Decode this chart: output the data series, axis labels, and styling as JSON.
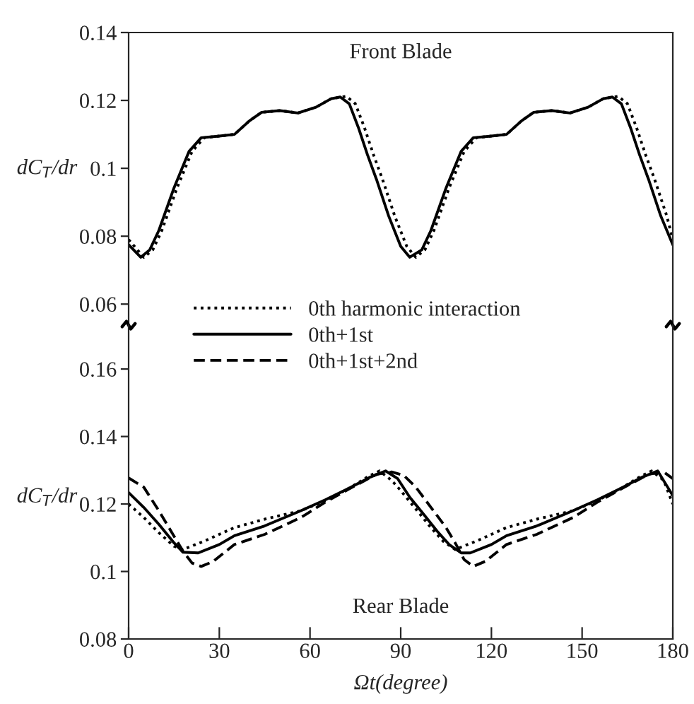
{
  "chart_data": [
    {
      "type": "line",
      "ylabel": "dC$_{T}$/dr",
      "annotations": [
        "Front Blade"
      ],
      "xlim": [
        0,
        180
      ],
      "ylim": [
        0.0538,
        0.14
      ],
      "yticks": [
        0.06,
        0.08,
        0.1,
        0.12,
        0.14
      ],
      "tick_labels": "y",
      "grid": false,
      "legend": false,
      "series": [
        {
          "color": "#000000",
          "line_style": "dotted",
          "x": [
            0,
            5,
            8,
            11,
            16,
            21,
            25,
            30,
            35,
            40,
            44,
            50,
            56,
            62,
            67,
            72,
            75,
            78,
            81,
            84,
            88,
            92,
            95,
            98,
            101,
            106,
            111,
            115,
            120,
            125,
            130,
            134,
            140,
            146,
            152,
            157,
            162,
            165,
            168,
            171,
            174,
            178,
            180
          ],
          "values": [
            0.079,
            0.0738,
            0.076,
            0.0817,
            0.0942,
            0.105,
            0.109,
            0.1095,
            0.11,
            0.114,
            0.1165,
            0.117,
            0.1163,
            0.118,
            0.1205,
            0.1212,
            0.119,
            0.112,
            0.104,
            0.0967,
            0.086,
            0.077,
            0.0738,
            0.076,
            0.0817,
            0.0942,
            0.105,
            0.109,
            0.1095,
            0.11,
            0.114,
            0.1165,
            0.117,
            0.1163,
            0.118,
            0.1205,
            0.1212,
            0.119,
            0.112,
            0.104,
            0.0967,
            0.086,
            0.079
          ]
        },
        {
          "color": "#000000",
          "line_style": "solid",
          "x": [
            0,
            4,
            7,
            10,
            15,
            20,
            24,
            30,
            35,
            40,
            44,
            50,
            56,
            62,
            67,
            70,
            73,
            76,
            79,
            82,
            86,
            90,
            93,
            97,
            100,
            105,
            110,
            114,
            120,
            125,
            130,
            134,
            140,
            146,
            152,
            157,
            160,
            163,
            166,
            169,
            172,
            176,
            180
          ],
          "values": [
            0.0775,
            0.0738,
            0.076,
            0.0817,
            0.0942,
            0.105,
            0.109,
            0.1095,
            0.11,
            0.114,
            0.1165,
            0.117,
            0.1163,
            0.118,
            0.1205,
            0.121,
            0.119,
            0.112,
            0.104,
            0.0967,
            0.086,
            0.077,
            0.0738,
            0.076,
            0.0817,
            0.0942,
            0.105,
            0.109,
            0.1095,
            0.11,
            0.114,
            0.1165,
            0.117,
            0.1163,
            0.118,
            0.1205,
            0.121,
            0.119,
            0.112,
            0.104,
            0.0967,
            0.086,
            0.0775
          ]
        }
      ]
    },
    {
      "type": "line",
      "ylabel": "dC$_{T}$/dr",
      "xlabel": "Ωt(degree)",
      "annotations": [
        "Rear Blade"
      ],
      "xlim": [
        0,
        180
      ],
      "xticks": [
        0,
        30,
        60,
        90,
        120,
        150,
        180
      ],
      "ylim": [
        0.08,
        0.173
      ],
      "yticks": [
        0.08,
        0.1,
        0.12,
        0.14,
        0.16
      ],
      "grid": false,
      "legend": "top",
      "series": [
        {
          "name": "0th harmonic interaction",
          "color": "#000000",
          "line_style": "dotted",
          "x": [
            0,
            5,
            10,
            15,
            18,
            25,
            35,
            45,
            57,
            65,
            73,
            79,
            83,
            87,
            90,
            95,
            100,
            104,
            108,
            115,
            125,
            135,
            147,
            155,
            163,
            169,
            173,
            177,
            180
          ],
          "values": [
            0.12,
            0.116,
            0.1115,
            0.1075,
            0.1065,
            0.109,
            0.113,
            0.1155,
            0.118,
            0.121,
            0.1247,
            0.128,
            0.1298,
            0.127,
            0.124,
            0.1185,
            0.113,
            0.109,
            0.1065,
            0.109,
            0.113,
            0.1155,
            0.118,
            0.121,
            0.1247,
            0.128,
            0.1298,
            0.127,
            0.12
          ]
        },
        {
          "name": "0th+1st",
          "color": "#000000",
          "line_style": "solid",
          "x": [
            0,
            5,
            10,
            15,
            18,
            23,
            30,
            35,
            45,
            57,
            65,
            73,
            80,
            85,
            89,
            93,
            98,
            102,
            106,
            110,
            113,
            120,
            125,
            135,
            147,
            155,
            163,
            170,
            175,
            180
          ],
          "values": [
            0.1234,
            0.119,
            0.114,
            0.1085,
            0.1057,
            0.1055,
            0.108,
            0.1106,
            0.1135,
            0.118,
            0.1212,
            0.1247,
            0.128,
            0.1298,
            0.1275,
            0.122,
            0.1165,
            0.112,
            0.108,
            0.1055,
            0.1055,
            0.108,
            0.1106,
            0.1135,
            0.118,
            0.1212,
            0.1247,
            0.128,
            0.1298,
            0.1225
          ]
        },
        {
          "name": "0th+1st+2nd",
          "color": "#000000",
          "line_style": "dashed",
          "x": [
            0,
            5,
            10,
            15,
            18,
            21,
            24,
            28,
            35,
            45,
            57,
            65,
            73,
            82,
            87,
            91,
            95,
            100,
            105,
            108,
            111,
            114,
            118,
            125,
            135,
            147,
            155,
            163,
            172,
            177,
            180
          ],
          "values": [
            0.1277,
            0.125,
            0.118,
            0.1105,
            0.106,
            0.1025,
            0.1015,
            0.103,
            0.108,
            0.111,
            0.116,
            0.1205,
            0.1245,
            0.1288,
            0.1295,
            0.1285,
            0.125,
            0.119,
            0.113,
            0.1085,
            0.1035,
            0.1015,
            0.103,
            0.108,
            0.111,
            0.116,
            0.1205,
            0.1245,
            0.1288,
            0.1295,
            0.1275
          ]
        }
      ]
    }
  ]
}
